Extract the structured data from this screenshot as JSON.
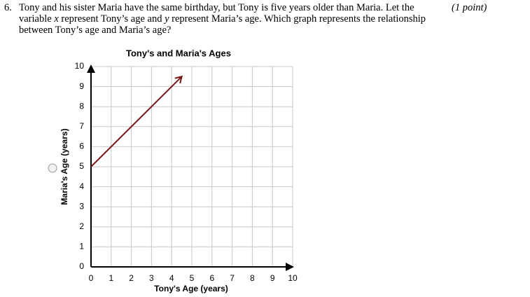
{
  "question": {
    "number": "6.",
    "points": "(1 point)",
    "text_parts": [
      "Tony and his sister Maria have the same birthday, but Tony is five years older than Maria. Let the variable ",
      "x",
      " represent Tony’s age and ",
      "y",
      " represent Maria’s age. Which graph represents the relationship between Tony’s age and Maria’s age?"
    ]
  },
  "chart_data": {
    "type": "line",
    "title": "Tony's and Maria's Ages",
    "x_label": "Tony's Age (years)",
    "y_label": "Maria's Age (years)",
    "xlim": [
      0,
      10
    ],
    "ylim": [
      0,
      10
    ],
    "xticks": [
      0,
      1,
      2,
      3,
      4,
      5,
      6,
      7,
      8,
      9,
      10
    ],
    "yticks": [
      0,
      1,
      2,
      3,
      4,
      5,
      6,
      7,
      8,
      9,
      10
    ],
    "grid": true,
    "series": [
      {
        "color": "#7a1717",
        "x": [
          0,
          4.5
        ],
        "values": [
          5,
          9.5
        ]
      }
    ]
  }
}
